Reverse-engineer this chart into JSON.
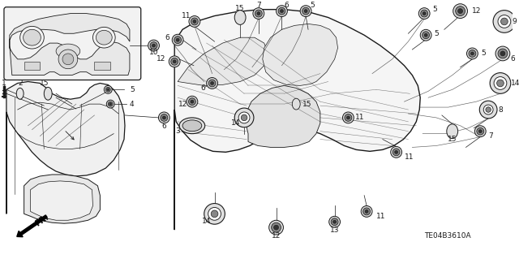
{
  "bg_color": "#ffffff",
  "line_color": "#1a1a1a",
  "diagram_code": "TE04B3610A",
  "grommets": {
    "small": {
      "r_outer": 5,
      "r_mid": 3,
      "r_inner": 1.5
    },
    "medium": {
      "r_outer": 7,
      "r_mid": 4.5,
      "r_inner": 2
    },
    "large": {
      "r_outer": 9,
      "r_mid": 6,
      "r_inner": 3
    },
    "xlarge": {
      "r_outer": 11,
      "r_mid": 7,
      "r_inner": 3.5
    }
  }
}
